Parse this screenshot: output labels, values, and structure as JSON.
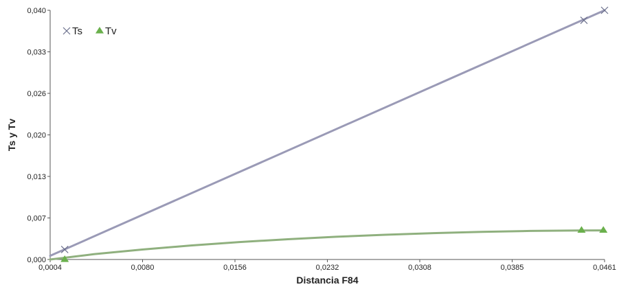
{
  "chart_data": {
    "type": "scatter",
    "xlabel": "Distancia F84",
    "ylabel": "Ts y Tv",
    "xlim": [
      0.0004,
      0.0461
    ],
    "ylim": [
      0.0,
      0.04
    ],
    "x_ticks": [
      "0,0004",
      "0,0080",
      "0,0156",
      "0,0232",
      "0,0308",
      "0,0385",
      "0,0461"
    ],
    "y_ticks": [
      "0,000",
      "0,007",
      "0,013",
      "0,020",
      "0,026",
      "0,033",
      "0,040"
    ],
    "grid": false,
    "legend_position": "top-left",
    "series": [
      {
        "name": "Ts",
        "marker": "x",
        "color": "#6b6f8c",
        "line_color": "#9a9ab6",
        "points": [
          [
            0.0016,
            0.0016
          ],
          [
            0.0444,
            0.0384
          ],
          [
            0.0461,
            0.04
          ]
        ],
        "fit_line": [
          [
            0.0004,
            0.0006
          ],
          [
            0.0461,
            0.04
          ]
        ]
      },
      {
        "name": "Tv",
        "marker": "triangle",
        "color": "#6ab04c",
        "line_color": "#8fb07e",
        "points": [
          [
            0.0016,
            0.0
          ],
          [
            0.0442,
            0.0047
          ],
          [
            0.046,
            0.0047
          ]
        ],
        "fit_curve": [
          [
            0.0004,
            0.0
          ],
          [
            0.004,
            0.00085
          ],
          [
            0.008,
            0.0016
          ],
          [
            0.012,
            0.00225
          ],
          [
            0.016,
            0.0028
          ],
          [
            0.02,
            0.00325
          ],
          [
            0.024,
            0.00365
          ],
          [
            0.028,
            0.00397
          ],
          [
            0.032,
            0.00423
          ],
          [
            0.036,
            0.00443
          ],
          [
            0.04,
            0.00458
          ],
          [
            0.044,
            0.00465
          ],
          [
            0.0461,
            0.00467
          ]
        ]
      }
    ]
  }
}
